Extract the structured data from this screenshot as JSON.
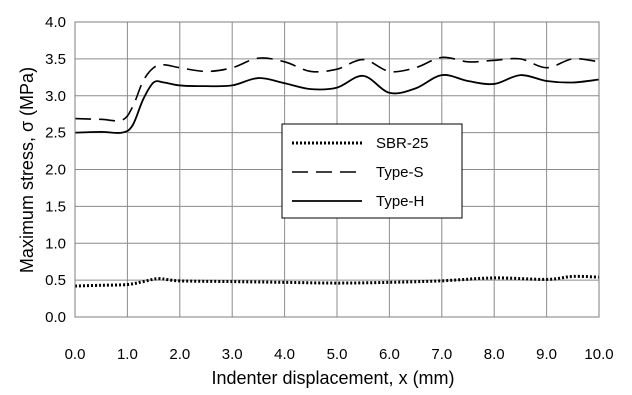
{
  "chart_data": {
    "type": "line",
    "title": "",
    "xlabel": "Indenter displacement, x (mm)",
    "ylabel": "Maximum stress, σ (MPa)",
    "xlim": [
      0.0,
      10.0
    ],
    "ylim": [
      0.0,
      4.0
    ],
    "x_ticks": [
      "0.0",
      "1.0",
      "2.0",
      "3.0",
      "4.0",
      "5.0",
      "6.0",
      "7.0",
      "8.0",
      "9.0",
      "10.0"
    ],
    "y_ticks": [
      "0.0",
      "0.5",
      "1.0",
      "1.5",
      "2.0",
      "2.5",
      "3.0",
      "3.5",
      "4.0"
    ],
    "grid": true,
    "legend_position": "center-right",
    "series": [
      {
        "name": "SBR-25",
        "style": "dotted",
        "color": "#000000",
        "x": [
          0.0,
          0.5,
          1.0,
          1.3,
          1.6,
          2.0,
          3.0,
          4.0,
          5.0,
          6.0,
          7.0,
          8.0,
          9.0,
          9.5,
          10.0
        ],
        "y": [
          0.42,
          0.43,
          0.44,
          0.48,
          0.52,
          0.49,
          0.48,
          0.47,
          0.46,
          0.47,
          0.49,
          0.53,
          0.51,
          0.55,
          0.54
        ]
      },
      {
        "name": "Type-S",
        "style": "dashed",
        "color": "#000000",
        "x": [
          0.0,
          0.5,
          0.9,
          1.1,
          1.3,
          1.5,
          1.7,
          2.0,
          2.5,
          3.0,
          3.5,
          4.0,
          4.5,
          5.0,
          5.5,
          6.0,
          6.5,
          7.0,
          7.5,
          8.0,
          8.5,
          9.0,
          9.5,
          10.0
        ],
        "y": [
          2.69,
          2.68,
          2.67,
          2.85,
          3.2,
          3.38,
          3.42,
          3.38,
          3.33,
          3.38,
          3.51,
          3.46,
          3.33,
          3.36,
          3.49,
          3.33,
          3.38,
          3.52,
          3.46,
          3.48,
          3.5,
          3.38,
          3.5,
          3.46
        ]
      },
      {
        "name": "Type-H",
        "style": "solid",
        "color": "#000000",
        "x": [
          0.0,
          0.5,
          0.9,
          1.1,
          1.3,
          1.5,
          1.7,
          2.0,
          2.5,
          3.0,
          3.5,
          4.0,
          4.5,
          5.0,
          5.5,
          6.0,
          6.5,
          7.0,
          7.5,
          8.0,
          8.5,
          9.0,
          9.5,
          10.0
        ],
        "y": [
          2.5,
          2.51,
          2.5,
          2.6,
          2.95,
          3.18,
          3.18,
          3.14,
          3.13,
          3.14,
          3.24,
          3.17,
          3.09,
          3.11,
          3.27,
          3.04,
          3.1,
          3.28,
          3.2,
          3.16,
          3.28,
          3.2,
          3.18,
          3.22
        ]
      }
    ]
  }
}
